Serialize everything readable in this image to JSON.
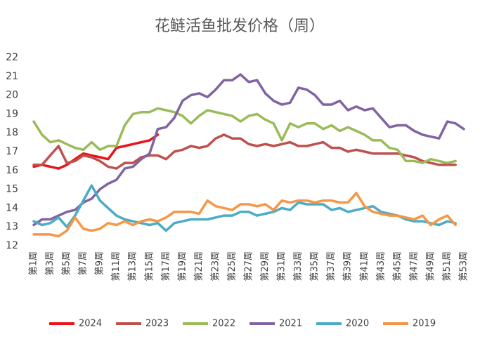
{
  "chart_data": {
    "type": "line",
    "title": "花鲢活鱼批发价格（周）",
    "categories": [
      "第1周",
      null,
      "第3周",
      null,
      "第5周",
      null,
      "第7周",
      null,
      "第9周",
      null,
      "第11周",
      null,
      "第13周",
      null,
      "第15周",
      null,
      "第17周",
      null,
      "第19周",
      null,
      "第21周",
      null,
      "第23周",
      null,
      "第25周",
      null,
      "第27周",
      null,
      "第29周",
      null,
      "第31周",
      null,
      "第33周",
      null,
      "第35周",
      null,
      "第37周",
      null,
      "第39周",
      null,
      "第41周",
      null,
      "第43周",
      null,
      "第45周",
      null,
      "第47周",
      null,
      "第49周",
      null,
      "第51周",
      null,
      "第53周"
    ],
    "ylim": [
      12,
      22
    ],
    "yticks": [
      12,
      13,
      14,
      15,
      16,
      17,
      18,
      19,
      20,
      21,
      22
    ],
    "series": [
      {
        "name": "2024",
        "color": "#e8141b",
        "values": [
          16.2,
          16.3,
          16.2,
          16.1,
          16.3,
          16.6,
          16.9,
          16.8,
          16.7,
          16.6,
          17.2,
          17.3,
          17.4,
          17.5,
          17.6,
          17.9,
          null,
          null,
          null,
          null,
          null,
          null,
          null,
          null,
          null,
          null,
          null,
          null,
          null,
          null,
          null,
          null,
          null,
          null,
          null,
          null,
          null,
          null,
          null,
          null,
          null,
          null,
          null,
          null,
          null,
          null,
          null,
          null,
          null,
          null,
          null,
          null,
          null
        ]
      },
      {
        "name": "2023",
        "color": "#c0504d",
        "values": [
          16.3,
          16.3,
          16.8,
          17.3,
          16.4,
          16.5,
          16.8,
          16.7,
          16.5,
          16.2,
          16.1,
          16.4,
          16.4,
          16.7,
          16.8,
          16.8,
          16.6,
          17.0,
          17.1,
          17.3,
          17.2,
          17.3,
          17.7,
          17.9,
          17.7,
          17.7,
          17.4,
          17.3,
          17.4,
          17.3,
          17.4,
          17.5,
          17.3,
          17.3,
          17.4,
          17.5,
          17.2,
          17.2,
          17.0,
          17.1,
          17.0,
          16.9,
          16.9,
          16.9,
          16.9,
          16.8,
          16.7,
          16.5,
          16.4,
          16.3,
          16.3,
          16.3,
          null
        ]
      },
      {
        "name": "2022",
        "color": "#9bbb59",
        "values": [
          18.6,
          17.9,
          17.5,
          17.6,
          17.4,
          17.2,
          17.1,
          17.5,
          17.1,
          17.3,
          17.3,
          18.4,
          19.0,
          19.1,
          19.1,
          19.3,
          19.2,
          19.1,
          18.9,
          18.5,
          18.9,
          19.2,
          19.1,
          19.0,
          18.9,
          18.6,
          18.9,
          19.0,
          18.7,
          18.5,
          17.6,
          18.5,
          18.3,
          18.5,
          18.5,
          18.2,
          18.4,
          18.1,
          18.3,
          18.1,
          17.9,
          17.6,
          17.6,
          17.2,
          17.1,
          16.5,
          16.5,
          16.4,
          16.6,
          16.5,
          16.4,
          16.5,
          null
        ]
      },
      {
        "name": "2021",
        "color": "#8064a2",
        "values": [
          13.1,
          13.4,
          13.4,
          13.6,
          13.8,
          13.9,
          14.3,
          14.5,
          15.0,
          15.3,
          15.5,
          16.1,
          16.2,
          16.6,
          16.9,
          18.2,
          18.3,
          18.8,
          19.7,
          20.0,
          20.1,
          19.9,
          20.3,
          20.8,
          20.8,
          21.1,
          20.7,
          20.8,
          20.1,
          19.7,
          19.5,
          19.6,
          20.4,
          20.3,
          20.0,
          19.5,
          19.5,
          19.7,
          19.2,
          19.4,
          19.2,
          19.3,
          18.8,
          18.3,
          18.4,
          18.4,
          18.1,
          17.9,
          17.8,
          17.7,
          18.6,
          18.5,
          18.2
        ]
      },
      {
        "name": "2020",
        "color": "#4bacc6",
        "values": [
          13.3,
          13.1,
          13.2,
          13.5,
          13.0,
          13.6,
          14.4,
          15.2,
          14.4,
          14.0,
          13.6,
          13.4,
          13.3,
          13.2,
          13.1,
          13.2,
          12.8,
          13.2,
          13.3,
          13.4,
          13.4,
          13.4,
          13.5,
          13.6,
          13.6,
          13.8,
          13.8,
          13.6,
          13.7,
          13.8,
          14.0,
          13.9,
          14.3,
          14.2,
          14.2,
          14.2,
          13.9,
          14.0,
          13.8,
          13.9,
          14.0,
          14.1,
          13.8,
          13.7,
          13.6,
          13.4,
          13.3,
          13.3,
          13.2,
          13.1,
          13.3,
          13.2,
          null
        ]
      },
      {
        "name": "2019",
        "color": "#f79646",
        "values": [
          12.6,
          12.6,
          12.6,
          12.5,
          12.8,
          13.5,
          12.9,
          12.8,
          12.9,
          13.2,
          13.1,
          13.3,
          13.1,
          13.3,
          13.4,
          13.3,
          13.5,
          13.8,
          13.8,
          13.8,
          13.7,
          14.4,
          14.1,
          14.0,
          13.9,
          14.2,
          14.2,
          14.1,
          14.2,
          13.9,
          14.4,
          14.3,
          14.4,
          14.4,
          14.3,
          14.4,
          14.4,
          14.3,
          14.3,
          14.8,
          14.1,
          13.8,
          13.7,
          13.6,
          13.6,
          13.5,
          13.4,
          13.6,
          13.1,
          13.4,
          13.6,
          13.1,
          null
        ]
      }
    ]
  }
}
